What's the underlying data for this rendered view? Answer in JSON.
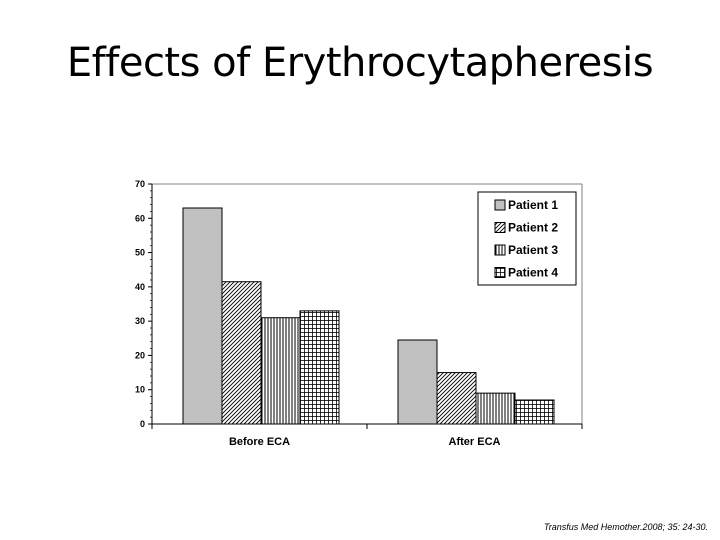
{
  "slide": {
    "title": "Effects of Erythrocytapheresis",
    "citation": "Transfus Med Hemother.2008; 35: 24-30."
  },
  "chart_data": {
    "type": "bar",
    "categories": [
      "Before ECA",
      "After ECA"
    ],
    "series": [
      {
        "name": "Patient 1",
        "values": [
          63,
          24.5
        ],
        "pattern": "solid-gray"
      },
      {
        "name": "Patient 2",
        "values": [
          41.5,
          15
        ],
        "pattern": "diagonal-hatch"
      },
      {
        "name": "Patient 3",
        "values": [
          31,
          9
        ],
        "pattern": "vertical-lines"
      },
      {
        "name": "Patient 4",
        "values": [
          33,
          7
        ],
        "pattern": "grid"
      }
    ],
    "ylim": [
      0,
      70
    ],
    "yticks": [
      0,
      10,
      20,
      30,
      40,
      50,
      60,
      70
    ],
    "legend_position": "top-right",
    "grid": false,
    "colors": {
      "patient1_fill": "#c0c0c0",
      "pattern_ink": "#000000",
      "plot_border": "#808080"
    }
  }
}
